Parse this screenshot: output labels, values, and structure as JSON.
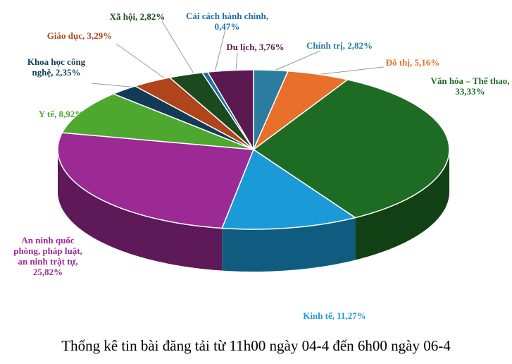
{
  "chart_data": {
    "type": "pie3d",
    "title": "Thống kê tin bài đăng tải từ 11h00 ngày 04-4 đến 6h00 ngày 06-4",
    "categories": [
      "Chính trị",
      "Đô thị",
      "Văn hóa – Thể thao",
      "Kinh tế",
      "An ninh quốc phòng, pháp luật, an ninh trật tự",
      "Y tế",
      "Khoa học công nghệ",
      "Giáo dục",
      "Xã hội",
      "Cải cách hành chính",
      "Du lịch"
    ],
    "values": [
      2.82,
      5.16,
      33.33,
      11.27,
      25.82,
      8.92,
      2.35,
      3.29,
      2.82,
      0.47,
      3.76
    ],
    "value_labels": [
      "Chính trị, 2,82%",
      "Đô thị, 5,16%",
      "Văn hóa – Thể thao, 33,33%",
      "Kinh tế, 11,27%",
      "An ninh quốc phòng, pháp luật, an ninh trật tự, 25,82%",
      "Y tế, 8,92%",
      "Khoa học công nghệ, 2,35%",
      "Giáo dục, 3,29%",
      "Xã hội, 2,82%",
      "Cải cách hành chính, 0,47%",
      "Du lịch, 3,76%"
    ],
    "colors": [
      "#2b7c9e",
      "#e8702a",
      "#1e6b23",
      "#1a9ad6",
      "#9c2a94",
      "#4ea72e",
      "#113b56",
      "#b0441a",
      "#1b4a1f",
      "#1d6fa5",
      "#5a1a50"
    ]
  }
}
